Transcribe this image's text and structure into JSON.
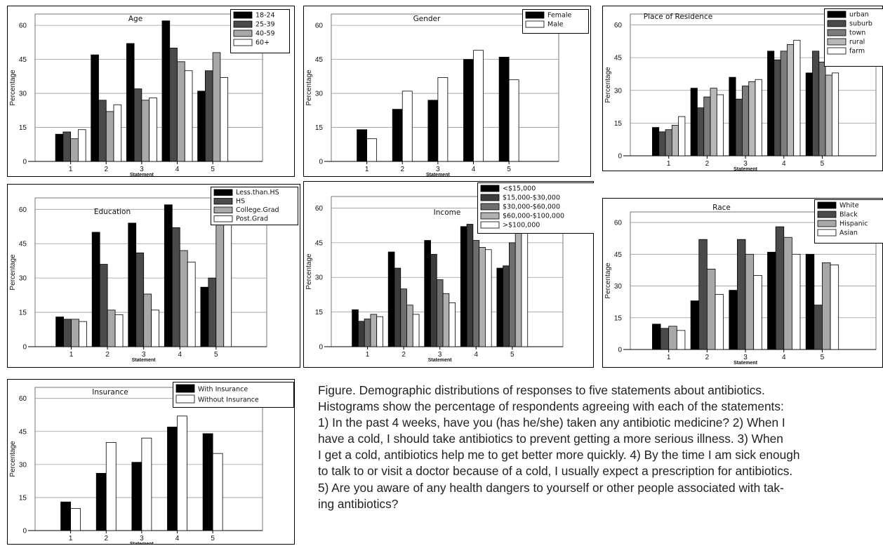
{
  "chart_data": [
    {
      "type": "bar",
      "title": "Age",
      "xlabel": "Statement",
      "ylabel": "Percentage",
      "ylim": [
        0,
        65
      ],
      "yticks": [
        "0",
        "15",
        "30",
        "45",
        "60"
      ],
      "categories": [
        "1",
        "2",
        "3",
        "4",
        "5"
      ],
      "legend_position": "top-right",
      "grid": true,
      "series": [
        {
          "name": "18-24",
          "color": "#000000",
          "values": [
            12,
            47,
            52,
            62,
            31
          ]
        },
        {
          "name": "25-39",
          "color": "#4a4a4a",
          "values": [
            13,
            27,
            32,
            50,
            40
          ]
        },
        {
          "name": "40-59",
          "color": "#a8a8a8",
          "values": [
            10,
            22,
            27,
            44,
            48
          ]
        },
        {
          "name": "60+",
          "color": "#ffffff",
          "values": [
            14,
            25,
            28,
            40,
            37
          ]
        }
      ]
    },
    {
      "type": "bar",
      "title": "Gender",
      "xlabel": "Statement",
      "ylabel": "Percentage",
      "ylim": [
        0,
        65
      ],
      "yticks": [
        "0",
        "15",
        "30",
        "45",
        "60"
      ],
      "categories": [
        "1",
        "2",
        "3",
        "4",
        "5"
      ],
      "legend_position": "top-right",
      "grid": true,
      "series": [
        {
          "name": "Female",
          "color": "#000000",
          "values": [
            14,
            23,
            27,
            45,
            46
          ]
        },
        {
          "name": "Male",
          "color": "#ffffff",
          "values": [
            10,
            31,
            37,
            49,
            36
          ]
        }
      ]
    },
    {
      "type": "bar",
      "title": "Place of Residence",
      "xlabel": "Statement",
      "ylabel": "Percentage",
      "ylim": [
        0,
        65
      ],
      "yticks": [
        "0",
        "15",
        "30",
        "45",
        "60"
      ],
      "categories": [
        "1",
        "2",
        "3",
        "4",
        "5"
      ],
      "legend_position": "top-right",
      "grid": true,
      "series": [
        {
          "name": "urban",
          "color": "#000000",
          "values": [
            13,
            31,
            36,
            48,
            38
          ]
        },
        {
          "name": "suburb",
          "color": "#4a4a4a",
          "values": [
            11,
            22,
            26,
            44,
            48
          ]
        },
        {
          "name": "town",
          "color": "#7c7c7c",
          "values": [
            12,
            27,
            32,
            48,
            43
          ]
        },
        {
          "name": "rural",
          "color": "#b8b8b8",
          "values": [
            14,
            31,
            34,
            51,
            37
          ]
        },
        {
          "name": "farm",
          "color": "#ffffff",
          "values": [
            18,
            28,
            35,
            53,
            38
          ]
        }
      ]
    },
    {
      "type": "bar",
      "title": "Education",
      "xlabel": "Statement",
      "ylabel": "Percentage",
      "ylim": [
        0,
        65
      ],
      "yticks": [
        "0",
        "15",
        "30",
        "45",
        "60"
      ],
      "categories": [
        "1",
        "2",
        "3",
        "4",
        "5"
      ],
      "legend_position": "top-right",
      "grid": true,
      "series": [
        {
          "name": "Less.than.HS",
          "color": "#000000",
          "values": [
            13,
            50,
            54,
            62,
            26
          ]
        },
        {
          "name": "HS",
          "color": "#4a4a4a",
          "values": [
            12,
            36,
            41,
            52,
            30
          ]
        },
        {
          "name": "College.Grad",
          "color": "#a8a8a8",
          "values": [
            12,
            16,
            23,
            42,
            54
          ]
        },
        {
          "name": "Post.Grad",
          "color": "#ffffff",
          "values": [
            11,
            14,
            16,
            37,
            59
          ]
        }
      ]
    },
    {
      "type": "bar",
      "title": "Income",
      "xlabel": "Statement",
      "ylabel": "Percentage",
      "ylim": [
        0,
        65
      ],
      "yticks": [
        "0",
        "15",
        "30",
        "45",
        "60"
      ],
      "categories": [
        "1",
        "2",
        "3",
        "4",
        "5"
      ],
      "legend_position": "top-right",
      "grid": true,
      "series": [
        {
          "name": "<$15,000",
          "color": "#000000",
          "values": [
            16,
            41,
            46,
            52,
            34
          ]
        },
        {
          "name": "$15,000-$30,000",
          "color": "#3c3c3c",
          "values": [
            11,
            34,
            40,
            53,
            35
          ]
        },
        {
          "name": "$30,000-$60,000",
          "color": "#6e6e6e",
          "values": [
            12,
            25,
            29,
            46,
            45
          ]
        },
        {
          "name": "$60,000-$100,000",
          "color": "#b0b0b0",
          "values": [
            14,
            18,
            23,
            43,
            50
          ]
        },
        {
          "name": ">$100,000",
          "color": "#ffffff",
          "values": [
            13,
            14,
            19,
            42,
            56
          ]
        }
      ]
    },
    {
      "type": "bar",
      "title": "Race",
      "xlabel": "Statement",
      "ylabel": "Percentage",
      "ylim": [
        0,
        65
      ],
      "yticks": [
        "0",
        "15",
        "30",
        "45",
        "60"
      ],
      "categories": [
        "1",
        "2",
        "3",
        "4",
        "5"
      ],
      "legend_position": "top-right",
      "grid": true,
      "series": [
        {
          "name": "White",
          "color": "#000000",
          "values": [
            12,
            23,
            28,
            46,
            45
          ]
        },
        {
          "name": "Black",
          "color": "#4a4a4a",
          "values": [
            10,
            52,
            52,
            58,
            21
          ]
        },
        {
          "name": "Hispanic",
          "color": "#a8a8a8",
          "values": [
            11,
            38,
            45,
            53,
            41
          ]
        },
        {
          "name": "Asian",
          "color": "#ffffff",
          "values": [
            9,
            26,
            35,
            45,
            40
          ]
        }
      ]
    },
    {
      "type": "bar",
      "title": "Insurance",
      "xlabel": "Statement",
      "ylabel": "Percentage",
      "ylim": [
        0,
        65
      ],
      "yticks": [
        "0",
        "15",
        "30",
        "45",
        "60"
      ],
      "categories": [
        "1",
        "2",
        "3",
        "4",
        "5"
      ],
      "legend_position": "top-right",
      "grid": true,
      "series": [
        {
          "name": "With Insurance",
          "color": "#000000",
          "values": [
            13,
            26,
            31,
            47,
            44
          ]
        },
        {
          "name": "Without Insurance",
          "color": "#ffffff",
          "values": [
            10,
            40,
            42,
            52,
            35
          ]
        }
      ]
    }
  ],
  "caption": {
    "lines": [
      "Figure. Demographic distributions of responses to five statements about antibiotics.",
      "Histograms show the percentage of respondents agreeing with each of the statements:",
      "1) In the past 4 weeks, have you (has he/she) taken any antibiotic medicine? 2) When I",
      "have a cold, I should take antibiotics to prevent getting a more serious illness. 3) When",
      "I get a cold, antibiotics help me to get better more quickly. 4) By the time I am sick enough",
      "to talk to or visit a doctor because of a cold, I usually expect a prescription for antibiotics.",
      "5) Are you aware of any health dangers to yourself or other people associated with tak-",
      "ing antibiotics?"
    ]
  }
}
